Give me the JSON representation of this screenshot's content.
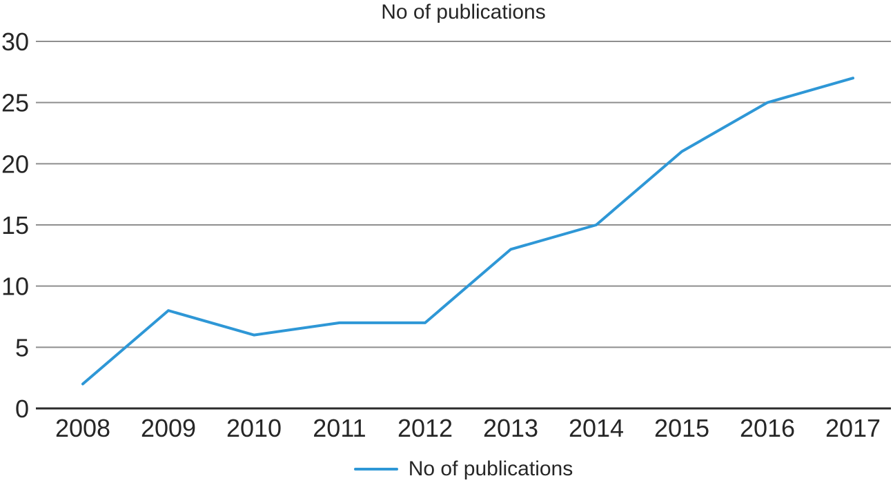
{
  "chart_data": {
    "type": "line",
    "title": "No of publications",
    "categories": [
      "2008",
      "2009",
      "2010",
      "2011",
      "2012",
      "2013",
      "2014",
      "2015",
      "2016",
      "2017"
    ],
    "series": [
      {
        "name": "No of publications",
        "values": [
          2,
          8,
          6,
          7,
          7,
          13,
          15,
          21,
          25,
          27
        ]
      }
    ],
    "xlabel": "",
    "ylabel": "",
    "ylim": [
      0,
      30
    ],
    "ytick_step": 5,
    "yticks": [
      0,
      5,
      10,
      15,
      20,
      25,
      30
    ],
    "grid": "horizontal",
    "legend_position": "bottom",
    "colors": {
      "line": "#2E97D6",
      "gridline": "#8E8E8E",
      "axis": "#2B2B2B",
      "text": "#262626"
    }
  },
  "legend": {
    "label": "No of publications"
  }
}
